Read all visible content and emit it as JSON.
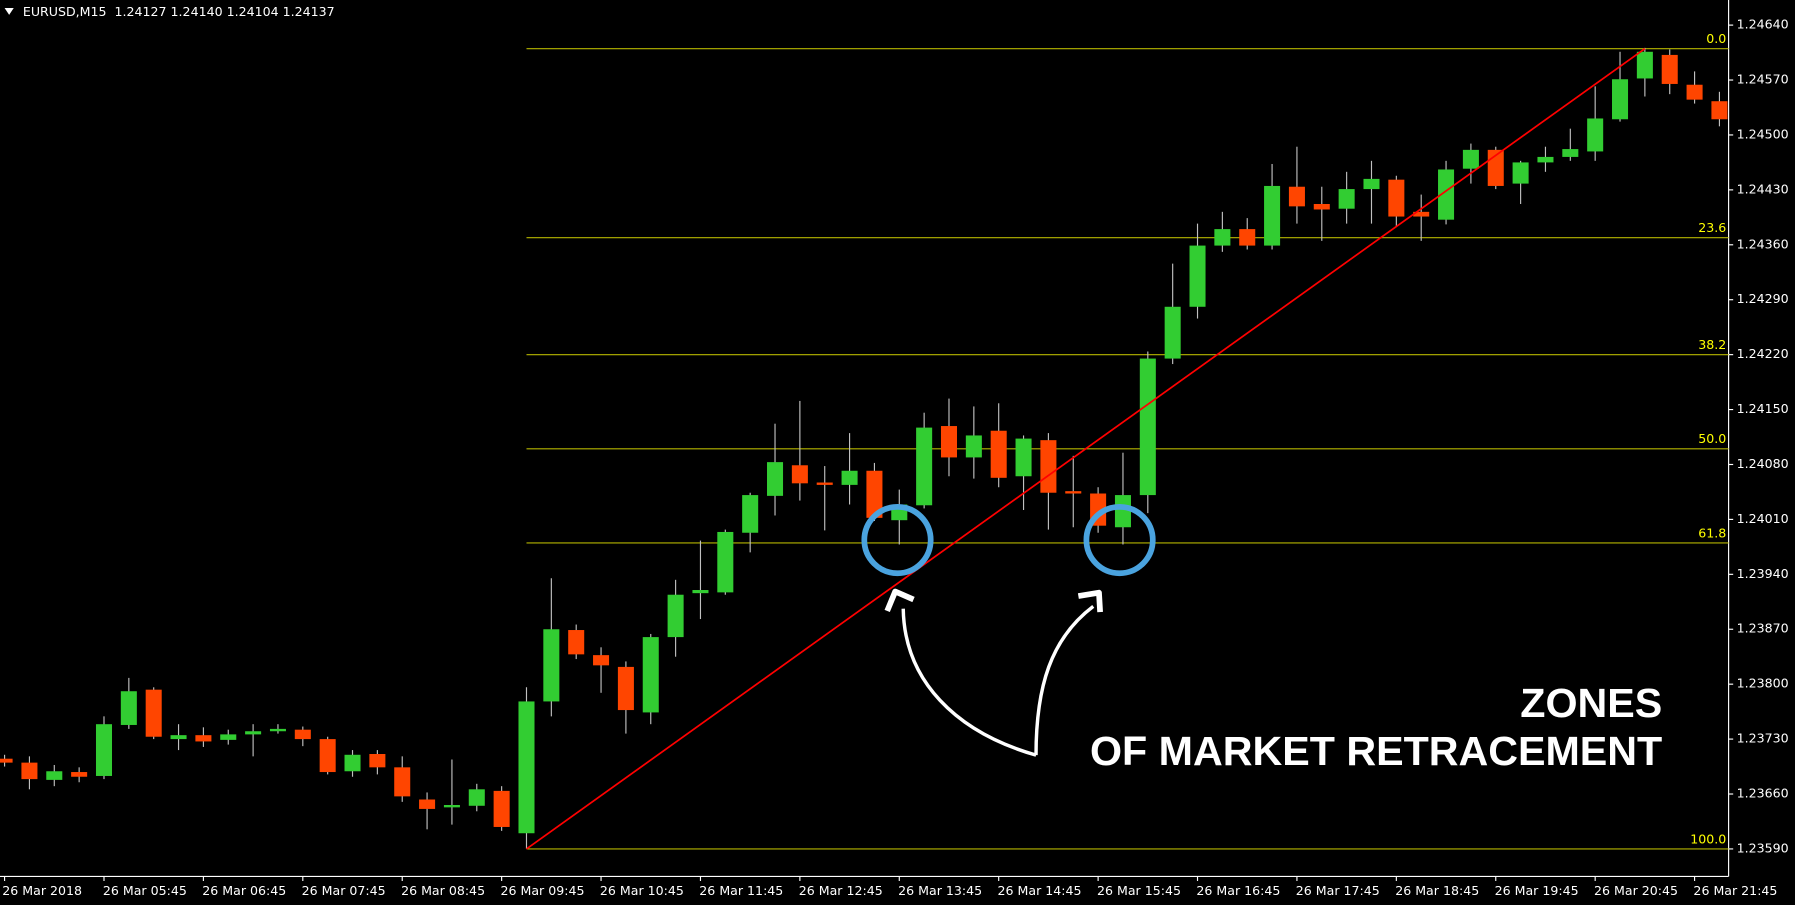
{
  "chart_data": {
    "type": "candlestick",
    "title": "EURUSD,M15  1.24127 1.24140 1.24104 1.24137",
    "categories": [
      "26 Mar 2018",
      null,
      null,
      null,
      "26 Mar 05:45",
      null,
      null,
      null,
      "26 Mar 06:45",
      null,
      null,
      null,
      "26 Mar 07:45",
      null,
      null,
      null,
      "26 Mar 08:45",
      null,
      null,
      null,
      "26 Mar 09:45",
      null,
      null,
      null,
      "26 Mar 10:45",
      null,
      null,
      null,
      "26 Mar 11:45",
      null,
      null,
      null,
      "26 Mar 12:45",
      null,
      null,
      null,
      "26 Mar 13:45",
      null,
      null,
      null,
      "26 Mar 14:45",
      null,
      null,
      null,
      "26 Mar 15:45",
      null,
      null,
      null,
      "26 Mar 16:45",
      null,
      null,
      null,
      "26 Mar 17:45",
      null,
      null,
      null,
      "26 Mar 18:45",
      null,
      null,
      null,
      "26 Mar 19:45",
      null,
      null,
      null,
      "26 Mar 20:45",
      null,
      null,
      null,
      "26 Mar 21:45",
      null
    ],
    "open": [
      1.23705,
      1.237,
      1.23678,
      1.23688,
      1.23683,
      1.23748,
      1.23793,
      1.2373,
      1.23735,
      1.23729,
      1.23736,
      1.2374,
      1.23742,
      1.2373,
      1.23689,
      1.23711,
      1.23694,
      1.23653,
      1.23643,
      1.23645,
      1.23664,
      1.2361,
      1.23778,
      1.23869,
      1.23837,
      1.23822,
      1.23764,
      1.2386,
      1.23916,
      1.23917,
      1.23993,
      1.2404,
      1.24079,
      1.24057,
      1.24054,
      1.24072,
      1.24009,
      1.24028,
      1.24129,
      1.24089,
      1.24123,
      1.24065,
      1.24111,
      1.24046,
      1.24043,
      1.24,
      1.24041,
      1.24215,
      1.24281,
      1.24359,
      1.2438,
      1.24359,
      1.24434,
      1.24412,
      1.24406,
      1.24431,
      1.24443,
      1.24402,
      1.24392,
      1.24457,
      1.24481,
      1.24438,
      1.24465,
      1.24472,
      1.24479,
      1.2452,
      1.24572,
      1.24602,
      1.24564,
      1.24543
    ],
    "high": [
      1.2371,
      1.23708,
      1.23697,
      1.23694,
      1.23759,
      1.23808,
      1.23796,
      1.23749,
      1.23745,
      1.23742,
      1.23749,
      1.23749,
      1.23746,
      1.23733,
      1.23716,
      1.23716,
      1.23708,
      1.23662,
      1.23704,
      1.23673,
      1.2367,
      1.23796,
      1.23935,
      1.23876,
      1.23847,
      1.23829,
      1.23864,
      1.23933,
      1.23983,
      1.23997,
      1.24044,
      1.24132,
      1.24161,
      1.24078,
      1.2412,
      1.24082,
      1.24048,
      1.24146,
      1.24164,
      1.24154,
      1.24158,
      1.24117,
      1.2412,
      1.24091,
      1.24051,
      1.24095,
      1.24224,
      1.24336,
      1.24387,
      1.24402,
      1.24394,
      1.24463,
      1.24485,
      1.24434,
      1.24453,
      1.24467,
      1.24448,
      1.24424,
      1.24467,
      1.24489,
      1.24485,
      1.24467,
      1.24485,
      1.24508,
      1.24562,
      1.24606,
      1.24611,
      1.24609,
      1.24581,
      1.24555
    ],
    "low": [
      1.23695,
      1.23666,
      1.2367,
      1.23675,
      1.23679,
      1.23743,
      1.2373,
      1.23716,
      1.2372,
      1.23723,
      1.23708,
      1.23737,
      1.23721,
      1.23685,
      1.23682,
      1.23685,
      1.2365,
      1.23615,
      1.23621,
      1.23638,
      1.23613,
      1.2359,
      1.23759,
      1.23832,
      1.23789,
      1.23737,
      1.23749,
      1.23835,
      1.23883,
      1.23914,
      1.23968,
      1.24015,
      1.24034,
      1.23996,
      1.24029,
      1.24008,
      1.23978,
      1.24024,
      1.24065,
      1.24062,
      1.24051,
      1.24022,
      1.23997,
      1.24,
      1.23993,
      1.23978,
      1.24018,
      1.24208,
      1.24266,
      1.24351,
      1.24354,
      1.24354,
      1.24387,
      1.24365,
      1.24387,
      1.24387,
      1.24383,
      1.24365,
      1.24386,
      1.24438,
      1.24431,
      1.24412,
      1.24453,
      1.24467,
      1.24467,
      1.24517,
      1.24549,
      1.24552,
      1.2454,
      1.24511
    ],
    "close": [
      1.237,
      1.23679,
      1.23689,
      1.23682,
      1.23749,
      1.23791,
      1.23733,
      1.23735,
      1.23727,
      1.23736,
      1.2374,
      1.23743,
      1.2373,
      1.23688,
      1.2371,
      1.23694,
      1.23657,
      1.23641,
      1.23646,
      1.23666,
      1.23618,
      1.23778,
      1.2387,
      1.23838,
      1.23824,
      1.23767,
      1.2386,
      1.23914,
      1.2392,
      1.23994,
      1.24041,
      1.24083,
      1.24056,
      1.24054,
      1.24072,
      1.24012,
      1.24029,
      1.24127,
      1.24089,
      1.24117,
      1.24063,
      1.24113,
      1.24044,
      1.24043,
      1.24002,
      1.24041,
      1.24215,
      1.24281,
      1.24359,
      1.2438,
      1.24359,
      1.24435,
      1.24409,
      1.24405,
      1.24431,
      1.24444,
      1.24396,
      1.24396,
      1.24456,
      1.24481,
      1.24435,
      1.24465,
      1.24472,
      1.24482,
      1.24521,
      1.24571,
      1.24606,
      1.24565,
      1.24545,
      1.2452
    ],
    "up_color": "#32cd32",
    "down_color": "#ff4500",
    "wick_color": "#c0c0c0",
    "ylim": [
      1.23555,
      1.24672
    ],
    "yticks": [
      {
        "value": 1.2359,
        "label": "1.23590"
      },
      {
        "value": 1.2366,
        "label": "1.23660"
      },
      {
        "value": 1.2373,
        "label": "1.23730"
      },
      {
        "value": 1.238,
        "label": "1.23800"
      },
      {
        "value": 1.2387,
        "label": "1.23870"
      },
      {
        "value": 1.2394,
        "label": "1.23940"
      },
      {
        "value": 1.2401,
        "label": "1.24010"
      },
      {
        "value": 1.2408,
        "label": "1.24080"
      },
      {
        "value": 1.2415,
        "label": "1.24150"
      },
      {
        "value": 1.2422,
        "label": "1.24220"
      },
      {
        "value": 1.2429,
        "label": "1.24290"
      },
      {
        "value": 1.2436,
        "label": "1.24360"
      },
      {
        "value": 1.2443,
        "label": "1.24430"
      },
      {
        "value": 1.245,
        "label": "1.24500"
      },
      {
        "value": 1.2457,
        "label": "1.24570"
      },
      {
        "value": 1.2464,
        "label": "1.24640"
      }
    ],
    "trendline": {
      "x": [
        21,
        66
      ],
      "y": [
        1.2359,
        1.2461
      ],
      "color": "#ff0000"
    },
    "fibonacci": {
      "color": "#b4b400",
      "label_color": "#ffff00",
      "levels": [
        {
          "label": "0.0",
          "price": 1.2461
        },
        {
          "label": "23.6",
          "price": 1.24369
        },
        {
          "label": "38.2",
          "price": 1.2422
        },
        {
          "label": "50.0",
          "price": 1.241
        },
        {
          "label": "61.8",
          "price": 1.2398
        },
        {
          "label": "100.0",
          "price": 1.2359
        }
      ]
    },
    "annotation": [
      "ZONES",
      "OF MARKET RETRACEMENT"
    ]
  }
}
